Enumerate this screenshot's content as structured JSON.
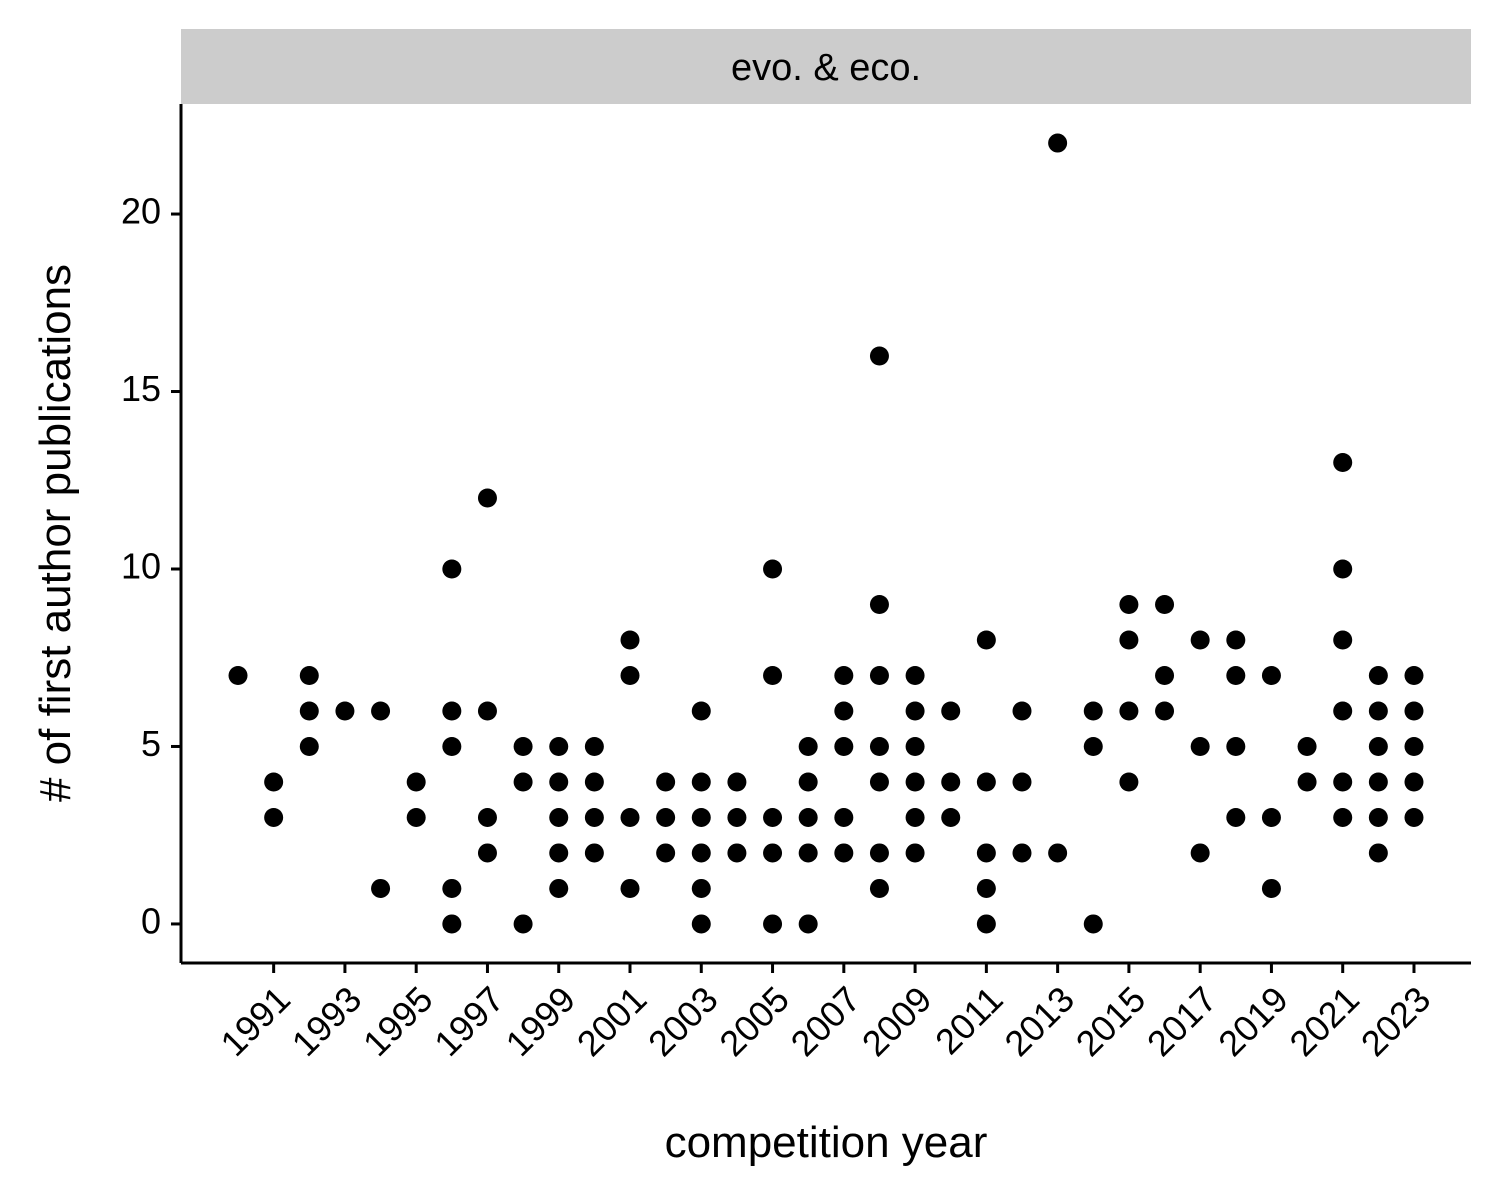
{
  "chart_data": {
    "type": "scatter",
    "facet_label": "evo. & eco.",
    "xlabel": "competition year",
    "ylabel": "# of first author publications",
    "xlim": [
      1988.4,
      2024.6
    ],
    "ylim": [
      -1.1,
      23.1
    ],
    "x_ticks": [
      1991,
      1993,
      1995,
      1997,
      1999,
      2001,
      2003,
      2005,
      2007,
      2009,
      2011,
      2013,
      2015,
      2017,
      2019,
      2021,
      2023
    ],
    "y_ticks": [
      0,
      5,
      10,
      15,
      20
    ],
    "grid": false,
    "point_color": "#000000",
    "points": [
      [
        1990,
        7
      ],
      [
        1991,
        4
      ],
      [
        1991,
        3
      ],
      [
        1992,
        7
      ],
      [
        1992,
        6
      ],
      [
        1992,
        5
      ],
      [
        1993,
        6
      ],
      [
        1994,
        6
      ],
      [
        1994,
        1
      ],
      [
        1995,
        4
      ],
      [
        1995,
        3
      ],
      [
        1996,
        10
      ],
      [
        1996,
        6
      ],
      [
        1996,
        5
      ],
      [
        1996,
        1
      ],
      [
        1996,
        0
      ],
      [
        1997,
        12
      ],
      [
        1997,
        6
      ],
      [
        1997,
        3
      ],
      [
        1997,
        2
      ],
      [
        1998,
        5
      ],
      [
        1998,
        4
      ],
      [
        1998,
        0
      ],
      [
        1999,
        5
      ],
      [
        1999,
        4
      ],
      [
        1999,
        3
      ],
      [
        1999,
        2
      ],
      [
        1999,
        1
      ],
      [
        2000,
        5
      ],
      [
        2000,
        4
      ],
      [
        2000,
        3
      ],
      [
        2000,
        2
      ],
      [
        2001,
        8
      ],
      [
        2001,
        7
      ],
      [
        2001,
        3
      ],
      [
        2001,
        1
      ],
      [
        2002,
        4
      ],
      [
        2002,
        3
      ],
      [
        2002,
        2
      ],
      [
        2003,
        6
      ],
      [
        2003,
        4
      ],
      [
        2003,
        3
      ],
      [
        2003,
        2
      ],
      [
        2003,
        1
      ],
      [
        2003,
        0
      ],
      [
        2004,
        4
      ],
      [
        2004,
        3
      ],
      [
        2004,
        2
      ],
      [
        2005,
        10
      ],
      [
        2005,
        7
      ],
      [
        2005,
        3
      ],
      [
        2005,
        2
      ],
      [
        2005,
        0
      ],
      [
        2006,
        5
      ],
      [
        2006,
        4
      ],
      [
        2006,
        3
      ],
      [
        2006,
        2
      ],
      [
        2006,
        0
      ],
      [
        2007,
        7
      ],
      [
        2007,
        6
      ],
      [
        2007,
        5
      ],
      [
        2007,
        3
      ],
      [
        2007,
        2
      ],
      [
        2008,
        16
      ],
      [
        2008,
        9
      ],
      [
        2008,
        7
      ],
      [
        2008,
        5
      ],
      [
        2008,
        4
      ],
      [
        2008,
        2
      ],
      [
        2008,
        1
      ],
      [
        2009,
        7
      ],
      [
        2009,
        6
      ],
      [
        2009,
        5
      ],
      [
        2009,
        4
      ],
      [
        2009,
        3
      ],
      [
        2009,
        2
      ],
      [
        2010,
        6
      ],
      [
        2010,
        4
      ],
      [
        2010,
        3
      ],
      [
        2011,
        8
      ],
      [
        2011,
        4
      ],
      [
        2011,
        2
      ],
      [
        2011,
        1
      ],
      [
        2011,
        0
      ],
      [
        2012,
        6
      ],
      [
        2012,
        4
      ],
      [
        2012,
        2
      ],
      [
        2013,
        22
      ],
      [
        2013,
        2
      ],
      [
        2014,
        6
      ],
      [
        2014,
        5
      ],
      [
        2014,
        0
      ],
      [
        2015,
        9
      ],
      [
        2015,
        8
      ],
      [
        2015,
        6
      ],
      [
        2015,
        4
      ],
      [
        2016,
        9
      ],
      [
        2016,
        7
      ],
      [
        2016,
        6
      ],
      [
        2017,
        8
      ],
      [
        2017,
        5
      ],
      [
        2017,
        2
      ],
      [
        2018,
        8
      ],
      [
        2018,
        7
      ],
      [
        2018,
        5
      ],
      [
        2018,
        3
      ],
      [
        2019,
        7
      ],
      [
        2019,
        3
      ],
      [
        2019,
        1
      ],
      [
        2020,
        5
      ],
      [
        2020,
        4
      ],
      [
        2021,
        13
      ],
      [
        2021,
        10
      ],
      [
        2021,
        8
      ],
      [
        2021,
        6
      ],
      [
        2021,
        4
      ],
      [
        2021,
        3
      ],
      [
        2022,
        7
      ],
      [
        2022,
        6
      ],
      [
        2022,
        5
      ],
      [
        2022,
        4
      ],
      [
        2022,
        3
      ],
      [
        2022,
        2
      ],
      [
        2023,
        7
      ],
      [
        2023,
        6
      ],
      [
        2023,
        5
      ],
      [
        2023,
        4
      ],
      [
        2023,
        3
      ]
    ]
  }
}
